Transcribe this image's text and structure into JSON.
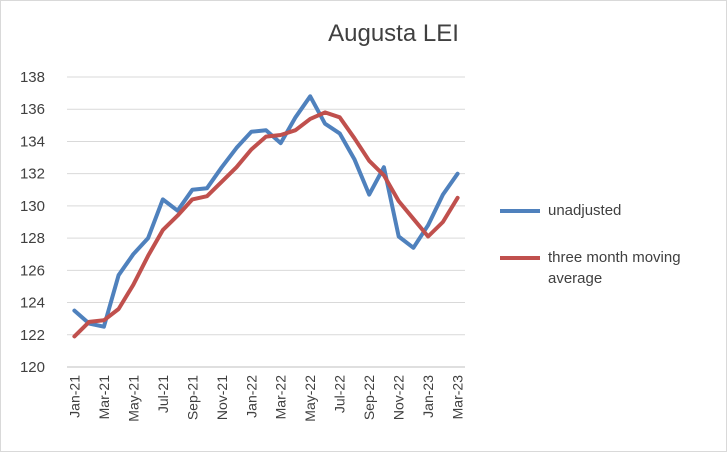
{
  "chart_data": {
    "type": "line",
    "title": "Augusta LEI",
    "xlabel": "",
    "ylabel": "",
    "ylim": [
      120,
      138
    ],
    "yticks": [
      120,
      122,
      124,
      126,
      128,
      130,
      132,
      134,
      136,
      138
    ],
    "grid": "horizontal",
    "legend_position": "right",
    "x": [
      "Jan-21",
      "Feb-21",
      "Mar-21",
      "Apr-21",
      "May-21",
      "Jun-21",
      "Jul-21",
      "Aug-21",
      "Sep-21",
      "Oct-21",
      "Nov-21",
      "Dec-21",
      "Jan-22",
      "Feb-22",
      "Mar-22",
      "Apr-22",
      "May-22",
      "Jun-22",
      "Jul-22",
      "Aug-22",
      "Sep-22",
      "Oct-22",
      "Nov-22",
      "Dec-22",
      "Jan-23",
      "Feb-23",
      "Mar-23"
    ],
    "x_tick_labels": [
      "Jan-21",
      "Mar-21",
      "May-21",
      "Jul-21",
      "Sep-21",
      "Nov-21",
      "Jan-22",
      "Mar-22",
      "May-22",
      "Jul-22",
      "Sep-22",
      "Nov-22",
      "Jan-23",
      "Mar-23"
    ],
    "series": [
      {
        "name": "unadjusted",
        "color": "#4f81bd",
        "values": [
          123.5,
          122.7,
          122.5,
          125.7,
          127.0,
          128.0,
          130.4,
          129.7,
          131.0,
          131.1,
          132.4,
          133.6,
          134.6,
          134.7,
          133.9,
          135.5,
          136.8,
          135.1,
          134.5,
          132.9,
          130.7,
          132.4,
          128.1,
          127.4,
          128.8,
          130.7,
          132.0
        ]
      },
      {
        "name": "three month moving average",
        "color": "#c0504d",
        "values": [
          121.9,
          122.8,
          122.9,
          123.6,
          125.1,
          126.9,
          128.5,
          129.4,
          130.4,
          130.6,
          131.5,
          132.4,
          133.5,
          134.3,
          134.4,
          134.7,
          135.4,
          135.8,
          135.5,
          134.2,
          132.8,
          131.9,
          130.3,
          129.2,
          128.1,
          129.0,
          130.5
        ]
      }
    ],
    "legend": {
      "items": [
        {
          "label": "unadjusted",
          "color": "#4f81bd"
        },
        {
          "label": "three month moving average",
          "color": "#c0504d"
        }
      ]
    }
  }
}
